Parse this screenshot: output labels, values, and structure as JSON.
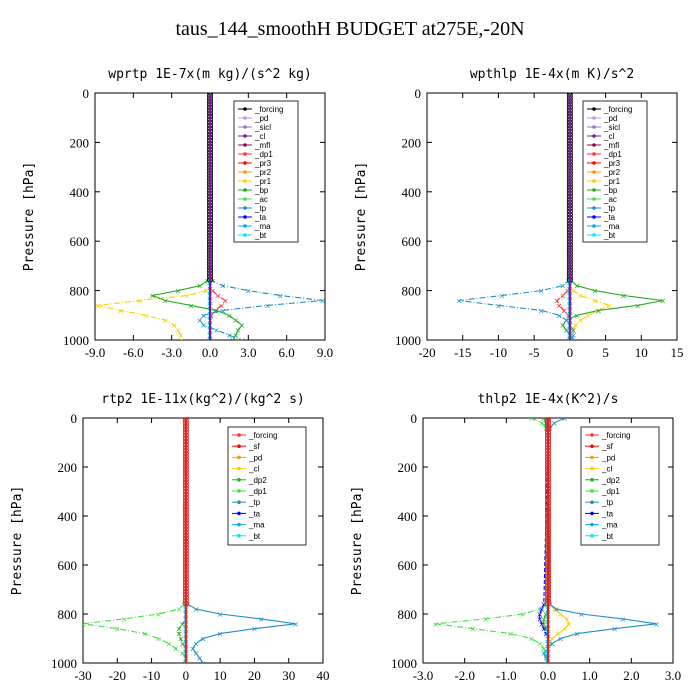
{
  "title": "taus_144_smoothH  BUDGET at275E,-20N",
  "chart_data": [
    {
      "type": "line",
      "title": "wprtp  1E-7x(m kg)/(s^2 kg)",
      "ylabel": "Pressure [hPa]",
      "xlim": [
        -9,
        9
      ],
      "ylim": [
        0,
        1000
      ],
      "y_inverted": true,
      "xticks": [
        "-9.0",
        "-6.0",
        "-3.0",
        "0.0",
        "3.0",
        "6.0",
        "9.0"
      ],
      "yticks": [
        "0",
        "200",
        "400",
        "600",
        "800",
        "1000"
      ],
      "legend_position": "top-right",
      "y": [
        760,
        780,
        800,
        820,
        840,
        860,
        880,
        900,
        920,
        940,
        960,
        980,
        1000
      ],
      "series": [
        {
          "name": "_forcing",
          "color": "#000000",
          "values": [
            0,
            0,
            0,
            0,
            0,
            0,
            0,
            0,
            0,
            0,
            0,
            0,
            0
          ]
        },
        {
          "name": "_pd",
          "color": "#b89ad8",
          "values": [
            0,
            0,
            0,
            0,
            0,
            0,
            0,
            0,
            0,
            0,
            0,
            0,
            0
          ]
        },
        {
          "name": "_sicl",
          "color": "#9a7ac8",
          "values": [
            0,
            0,
            0,
            0,
            0,
            0,
            0,
            0,
            0,
            0,
            0,
            0,
            0
          ]
        },
        {
          "name": "_cl",
          "color": "#7a1a9a",
          "values": [
            0,
            0,
            0,
            0,
            0,
            0,
            0,
            0,
            0,
            0,
            0,
            0,
            0
          ]
        },
        {
          "name": "_mfl",
          "color": "#8b0a50",
          "values": [
            0,
            0,
            0,
            0,
            0,
            0,
            0,
            0,
            0,
            0,
            0,
            0,
            0
          ]
        },
        {
          "name": "_dp1",
          "color": "#ff3030",
          "values": [
            0,
            0,
            0.2,
            0.6,
            1.2,
            0.9,
            0.4,
            0.1,
            0,
            0,
            0,
            0,
            0
          ]
        },
        {
          "name": "_pr3",
          "color": "#ff0000",
          "values": [
            0,
            0,
            0,
            0,
            0,
            0,
            0,
            0,
            0,
            0,
            0,
            0,
            0
          ]
        },
        {
          "name": "_pr2",
          "color": "#ff9900",
          "values": [
            0,
            0,
            0,
            0,
            0,
            0,
            0,
            0,
            0,
            0,
            0,
            0,
            0
          ]
        },
        {
          "name": "_pr1",
          "color": "#ffcc00",
          "values": [
            0,
            0,
            -0.3,
            -1.8,
            -5.5,
            -8.8,
            -7.0,
            -5.0,
            -3.5,
            -2.8,
            -2.5,
            -2.3,
            -2.2
          ]
        },
        {
          "name": "_bp",
          "color": "#22aa22",
          "values": [
            -0.2,
            -0.8,
            -2.5,
            -4.5,
            -3.5,
            -1.5,
            0.5,
            1.5,
            2.0,
            2.5,
            2.2,
            2.0,
            1.8
          ]
        },
        {
          "name": "_ac",
          "color": "#44dd44",
          "values": [
            0,
            0,
            0,
            0,
            0,
            0,
            0,
            0,
            0,
            0,
            0,
            0,
            0
          ]
        },
        {
          "name": "_tp",
          "color": "#1e90c8",
          "values": [
            0.2,
            1.0,
            3.0,
            5.5,
            8.8,
            4.5,
            1.0,
            -0.5,
            -0.8,
            -0.5,
            0.5,
            1.5,
            2.5
          ]
        },
        {
          "name": "_ta",
          "color": "#0000ff",
          "values": [
            0,
            0,
            0,
            0,
            0,
            0,
            0,
            0,
            0,
            0,
            0,
            0,
            0
          ]
        },
        {
          "name": "_ma",
          "color": "#00aaff",
          "values": [
            0,
            0,
            0,
            0,
            0,
            0,
            0,
            0,
            0,
            0,
            0,
            0,
            0
          ]
        },
        {
          "name": "_bt",
          "color": "#00e5ff",
          "values": [
            0,
            0,
            0,
            0,
            0,
            0,
            0,
            0,
            0,
            0,
            0,
            0,
            0
          ]
        }
      ]
    },
    {
      "type": "line",
      "title": "wpthlp  1E-4x(m K)/s^2",
      "ylabel": "Pressure [hPa]",
      "xlim": [
        -20,
        15
      ],
      "ylim": [
        0,
        1000
      ],
      "y_inverted": true,
      "xticks": [
        "-20",
        "-15",
        "-10",
        "-5",
        "0",
        "5",
        "10",
        "15"
      ],
      "yticks": [
        "0",
        "200",
        "400",
        "600",
        "800",
        "1000"
      ],
      "legend_position": "top-right",
      "y": [
        760,
        780,
        800,
        820,
        840,
        860,
        880,
        900,
        920,
        940,
        960,
        980,
        1000
      ],
      "series": [
        {
          "name": "_forcing",
          "color": "#000000",
          "values": [
            0,
            0,
            0,
            0,
            0,
            0,
            0,
            0,
            0,
            0,
            0,
            0,
            0
          ]
        },
        {
          "name": "_pd",
          "color": "#b89ad8",
          "values": [
            0,
            0,
            0,
            0,
            0,
            0,
            0,
            0,
            0,
            0,
            0,
            0,
            0
          ]
        },
        {
          "name": "_sicl",
          "color": "#9a7ac8",
          "values": [
            0,
            0,
            0,
            0,
            0,
            0,
            0,
            0,
            0,
            0,
            0,
            0,
            0
          ]
        },
        {
          "name": "_cl",
          "color": "#7a1a9a",
          "values": [
            0,
            0,
            0,
            0,
            0,
            0,
            0,
            0,
            0,
            0,
            0,
            0,
            0
          ]
        },
        {
          "name": "_mfl",
          "color": "#8b0a50",
          "values": [
            0,
            0,
            0,
            0,
            0,
            0,
            0,
            0,
            0,
            0,
            0,
            0,
            0
          ]
        },
        {
          "name": "_dp1",
          "color": "#ff3030",
          "values": [
            0,
            0,
            -0.3,
            -1.0,
            -1.8,
            -1.5,
            -0.8,
            -0.2,
            0,
            0,
            0,
            0,
            0
          ]
        },
        {
          "name": "_pr3",
          "color": "#ff0000",
          "values": [
            0,
            0,
            0,
            0,
            0,
            0,
            0,
            0,
            0,
            0,
            0,
            0,
            0
          ]
        },
        {
          "name": "_pr2",
          "color": "#ff9900",
          "values": [
            0,
            0,
            0,
            0,
            0,
            0,
            0,
            0,
            0,
            0,
            0,
            0,
            0
          ]
        },
        {
          "name": "_pr1",
          "color": "#ffcc00",
          "values": [
            0,
            0,
            0.5,
            1.5,
            3.5,
            5.5,
            4.0,
            2.5,
            1.5,
            0.8,
            0.4,
            0.2,
            0.1
          ]
        },
        {
          "name": "_bp",
          "color": "#22aa22",
          "values": [
            0.2,
            1.0,
            3.5,
            7.5,
            13.0,
            9.5,
            4.0,
            1.0,
            -0.5,
            -1.0,
            -0.5,
            0,
            0.2
          ]
        },
        {
          "name": "_ac",
          "color": "#44dd44",
          "values": [
            0,
            0,
            0,
            0,
            0,
            0,
            0,
            0,
            0,
            0,
            0,
            0,
            0
          ]
        },
        {
          "name": "_tp",
          "color": "#1e90c8",
          "values": [
            -0.2,
            -1.0,
            -4.0,
            -9.5,
            -15.5,
            -10.0,
            -4.0,
            -1.5,
            -0.5,
            0,
            0.5,
            0.5,
            0.3
          ]
        },
        {
          "name": "_ta",
          "color": "#0000ff",
          "values": [
            0,
            0,
            0,
            0,
            0,
            0,
            0,
            0,
            0,
            0,
            0,
            0,
            0
          ]
        },
        {
          "name": "_ma",
          "color": "#00aaff",
          "values": [
            0,
            0,
            0,
            0,
            0,
            0,
            0,
            0,
            0,
            0,
            0,
            0,
            0
          ]
        },
        {
          "name": "_bt",
          "color": "#00e5ff",
          "values": [
            0,
            0,
            0,
            0,
            0,
            0,
            0,
            0,
            0,
            0,
            0,
            0,
            0
          ]
        }
      ]
    },
    {
      "type": "line",
      "title": "rtp2  1E-11x(kg^2)/(kg^2 s)",
      "ylabel": "Pressure [hPa]",
      "xlim": [
        -30,
        40
      ],
      "ylim": [
        0,
        1000
      ],
      "y_inverted": true,
      "xticks": [
        "-30",
        "-20",
        "-10",
        "0",
        "10",
        "20",
        "30",
        "40"
      ],
      "yticks": [
        "0",
        "200",
        "400",
        "600",
        "800",
        "1000"
      ],
      "legend_position": "top-right",
      "y": [
        760,
        780,
        800,
        820,
        840,
        860,
        880,
        900,
        920,
        940,
        960,
        980,
        1000
      ],
      "series": [
        {
          "name": "_forcing",
          "color": "#ff3030",
          "values": [
            0,
            0,
            0,
            0,
            0,
            0,
            0,
            0,
            0,
            0,
            0,
            0,
            0
          ]
        },
        {
          "name": "_sf",
          "color": "#ff0000",
          "values": [
            0,
            0,
            0,
            0,
            0,
            0,
            0,
            0,
            0,
            0,
            0,
            0,
            0
          ]
        },
        {
          "name": "_pd",
          "color": "#ff9900",
          "values": [
            0,
            0,
            0,
            0,
            0,
            0,
            0,
            0,
            0,
            0,
            0,
            0,
            0
          ]
        },
        {
          "name": "_cl",
          "color": "#ffcc00",
          "values": [
            0,
            0,
            0,
            0,
            0,
            0,
            0,
            0,
            0,
            0,
            0,
            0,
            0
          ]
        },
        {
          "name": "_dp2",
          "color": "#22aa22",
          "values": [
            0,
            0,
            0,
            0,
            -1,
            -2,
            -2,
            -1.5,
            -1,
            0,
            0,
            0,
            0
          ]
        },
        {
          "name": "_dp1",
          "color": "#44dd44",
          "values": [
            -0.5,
            -2,
            -8,
            -18,
            -30,
            -20,
            -12,
            -8,
            -5,
            -3,
            -1,
            0,
            0
          ]
        },
        {
          "name": "_tp",
          "color": "#1e90c8",
          "values": [
            0.5,
            3,
            10,
            22,
            32,
            20,
            10,
            5,
            3,
            2,
            3,
            4,
            5
          ]
        },
        {
          "name": "_ta",
          "color": "#0000ff",
          "values": [
            0,
            0,
            0,
            0,
            0,
            0,
            0,
            0,
            0,
            0,
            0,
            0,
            0
          ]
        },
        {
          "name": "_ma",
          "color": "#00aaff",
          "values": [
            0,
            0,
            0,
            0,
            0,
            0,
            0,
            0,
            0,
            0,
            0,
            0,
            0
          ]
        },
        {
          "name": "_bt",
          "color": "#00e5ff",
          "values": [
            0,
            0,
            0,
            0,
            0,
            0,
            0,
            0,
            0,
            0,
            0,
            0,
            0
          ]
        }
      ]
    },
    {
      "type": "line",
      "title": "thlp2  1E-4x(K^2)/s",
      "ylabel": "Pressure [hPa]",
      "xlim": [
        -3,
        3
      ],
      "ylim": [
        0,
        1000
      ],
      "y_inverted": true,
      "xticks": [
        "-3.0",
        "-2.0",
        "-1.0",
        "0.0",
        "1.0",
        "2.0",
        "3.0"
      ],
      "yticks": [
        "0",
        "200",
        "400",
        "600",
        "800",
        "1000"
      ],
      "legend_position": "top-right",
      "y": [
        0,
        20,
        40,
        60,
        760,
        780,
        800,
        820,
        840,
        860,
        880,
        900,
        920,
        940,
        960,
        980,
        1000
      ],
      "series": [
        {
          "name": "_forcing",
          "color": "#ff3030",
          "values": [
            0,
            0,
            0,
            0,
            0,
            0,
            0,
            0,
            0,
            0,
            0,
            0,
            0,
            0,
            0,
            0,
            0
          ]
        },
        {
          "name": "_sf",
          "color": "#ff0000",
          "values": [
            0,
            0,
            0,
            0,
            0,
            0,
            0,
            0,
            0,
            0,
            0,
            0,
            0,
            0,
            0,
            0,
            0
          ]
        },
        {
          "name": "_pd",
          "color": "#ff9900",
          "values": [
            0,
            0,
            0,
            0,
            0,
            0,
            0,
            0,
            0,
            0,
            0,
            0,
            0,
            0,
            0,
            0,
            0
          ]
        },
        {
          "name": "_cl",
          "color": "#ffcc00",
          "values": [
            0,
            0,
            0,
            0,
            0.05,
            0.15,
            0.3,
            0.45,
            0.5,
            0.4,
            0.25,
            0.1,
            0.05,
            0,
            0,
            0,
            0
          ]
        },
        {
          "name": "_dp2",
          "color": "#22aa22",
          "values": [
            -0.1,
            -0.05,
            0,
            0,
            0,
            0,
            -0.05,
            -0.1,
            -0.1,
            -0.05,
            0,
            0,
            0,
            0,
            0,
            0,
            0
          ]
        },
        {
          "name": "_dp1",
          "color": "#44dd44",
          "values": [
            -0.4,
            -0.15,
            -0.05,
            0,
            -0.05,
            -0.2,
            -0.6,
            -1.5,
            -2.7,
            -1.8,
            -0.9,
            -0.4,
            -0.2,
            -0.1,
            -0.05,
            0,
            0
          ]
        },
        {
          "name": "_tp",
          "color": "#1e90c8",
          "values": [
            0.4,
            0.15,
            0.05,
            0,
            0.05,
            0.2,
            0.8,
            1.8,
            2.6,
            1.6,
            0.7,
            0.3,
            0.1,
            0,
            -0.1,
            -0.05,
            0
          ]
        },
        {
          "name": "_ta",
          "color": "#0000ff",
          "values": [
            0,
            0,
            0,
            0,
            -0.1,
            -0.15,
            -0.2,
            -0.2,
            -0.15,
            -0.1,
            -0.05,
            0,
            0,
            0,
            0,
            0,
            0
          ]
        },
        {
          "name": "_ma",
          "color": "#00aaff",
          "values": [
            0,
            0,
            0,
            0,
            0,
            0,
            0,
            0,
            0,
            0,
            0,
            0,
            0,
            0,
            0,
            0,
            0
          ]
        },
        {
          "name": "_bt",
          "color": "#00e5ff",
          "values": [
            0,
            0,
            0,
            0,
            0,
            0,
            0,
            0,
            0,
            0,
            0,
            0,
            0,
            0,
            0,
            0,
            0
          ]
        }
      ]
    }
  ]
}
